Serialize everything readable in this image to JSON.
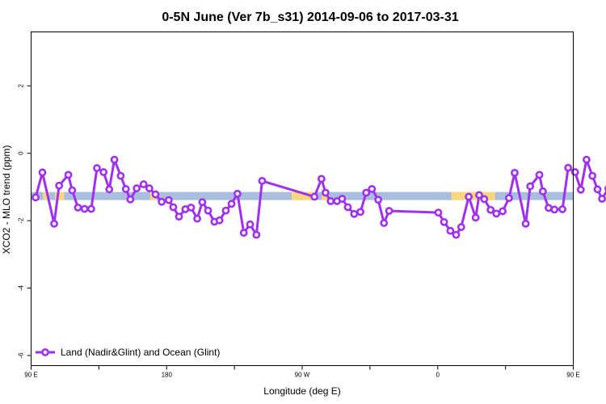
{
  "chart_data": {
    "type": "line",
    "title": "0-5N June (Ver 7b_s31)   2014-09-06 to 2017-03-31",
    "xlabel": "Longitude (deg E)",
    "ylabel": "XCO2 - MLO trend (ppm)",
    "xlim": [
      90,
      450
    ],
    "ylim": [
      -6.3,
      3.6
    ],
    "x_ticks": [
      {
        "value": 90,
        "label": "90 E"
      },
      {
        "value": 180,
        "label": "180"
      },
      {
        "value": 270,
        "label": "90 W"
      },
      {
        "value": 360,
        "label": "0"
      },
      {
        "value": 450,
        "label": "90 E"
      },
      {
        "value": 540,
        "label": "180"
      }
    ],
    "y_ticks": [
      {
        "value": 2,
        "label": "2"
      },
      {
        "value": 0,
        "label": "0"
      },
      {
        "value": -2,
        "label": "-2"
      },
      {
        "value": -4,
        "label": "-4"
      },
      {
        "value": -6,
        "label": "-6"
      }
    ],
    "x_tick_positions_extra": [
      135,
      225,
      315,
      405,
      495
    ],
    "surface_band": {
      "y": -1.27,
      "colors": {
        "ocean": "#a9bedf",
        "land": "#fdd77c"
      },
      "land_ranges": [
        [
          98,
          102
        ],
        [
          106,
          112
        ],
        [
          169,
          173
        ],
        [
          263,
          278
        ],
        [
          283,
          288
        ],
        [
          369,
          398
        ],
        [
          479,
          485
        ],
        [
          489,
          496
        ]
      ]
    },
    "series": [
      {
        "name": "Land (Nadir&Glint) and Ocean (Glint)",
        "color": "#a030f0",
        "points": [
          [
            93.0,
            -1.31
          ],
          [
            97.5,
            -0.57
          ],
          [
            105.3,
            -2.09
          ],
          [
            108.6,
            -0.96
          ],
          [
            114.7,
            -0.64
          ],
          [
            117.3,
            -1.1
          ],
          [
            121.1,
            -1.61
          ],
          [
            125.5,
            -1.65
          ],
          [
            129.9,
            -1.65
          ],
          [
            133.7,
            -0.44
          ],
          [
            138.1,
            -0.56
          ],
          [
            141.9,
            -1.07
          ],
          [
            145.3,
            -0.19
          ],
          [
            149.5,
            -0.67
          ],
          [
            152.9,
            -1.06
          ],
          [
            155.9,
            -1.37
          ],
          [
            160.1,
            -1.04
          ],
          [
            164.7,
            -0.92
          ],
          [
            168.5,
            -1.04
          ],
          [
            172.6,
            -1.22
          ],
          [
            176.7,
            -1.44
          ],
          [
            181.4,
            -1.39
          ],
          [
            184.4,
            -1.6
          ],
          [
            188.2,
            -1.88
          ],
          [
            192.4,
            -1.66
          ],
          [
            196.2,
            -1.61
          ],
          [
            200.3,
            -1.94
          ],
          [
            203.7,
            -1.45
          ],
          [
            207.5,
            -1.7
          ],
          [
            211.7,
            -2.03
          ],
          [
            215.1,
            -1.99
          ],
          [
            219.3,
            -1.7
          ],
          [
            223.1,
            -1.5
          ],
          [
            227.0,
            -1.2
          ],
          [
            231.2,
            -2.36
          ],
          [
            235.4,
            -2.11
          ],
          [
            239.6,
            -2.42
          ],
          [
            243.4,
            -0.82
          ],
          [
            278.1,
            -1.29
          ],
          [
            282.8,
            -0.76
          ],
          [
            285.5,
            -1.17
          ],
          [
            288.9,
            -1.42
          ],
          [
            293.1,
            -1.42
          ],
          [
            296.5,
            -1.35
          ],
          [
            300.3,
            -1.6
          ],
          [
            304.5,
            -1.8
          ],
          [
            308.7,
            -1.74
          ],
          [
            312.5,
            -1.17
          ],
          [
            316.3,
            -1.06
          ],
          [
            320.5,
            -1.38
          ],
          [
            324.3,
            -2.07
          ],
          [
            327.7,
            -1.71
          ],
          [
            360.4,
            -1.76
          ],
          [
            364.2,
            -2.04
          ],
          [
            368.4,
            -2.3
          ],
          [
            372.2,
            -2.42
          ],
          [
            375.6,
            -2.19
          ],
          [
            380.6,
            -1.29
          ],
          [
            385.2,
            -1.91
          ],
          [
            387.5,
            -1.24
          ],
          [
            390.9,
            -1.36
          ],
          [
            395.1,
            -1.68
          ],
          [
            398.9,
            -1.79
          ],
          [
            403.1,
            -1.72
          ],
          [
            407.3,
            -1.33
          ],
          [
            411.1,
            -0.58
          ],
          [
            418.4,
            -2.09
          ],
          [
            421.4,
            -0.98
          ],
          [
            427.5,
            -0.64
          ],
          [
            429.8,
            -1.13
          ],
          [
            433.6,
            -1.62
          ],
          [
            437.5,
            -1.67
          ],
          [
            442.8,
            -1.66
          ],
          [
            446.6,
            -0.43
          ],
          [
            451.2,
            -0.56
          ],
          [
            455.0,
            -1.08
          ],
          [
            458.8,
            -0.19
          ],
          [
            462.7,
            -0.67
          ],
          [
            466.1,
            -1.07
          ],
          [
            469.1,
            -1.35
          ],
          [
            473.3,
            -1.04
          ]
        ]
      }
    ],
    "legend": {
      "position": "bottom-left"
    },
    "grid": false
  }
}
